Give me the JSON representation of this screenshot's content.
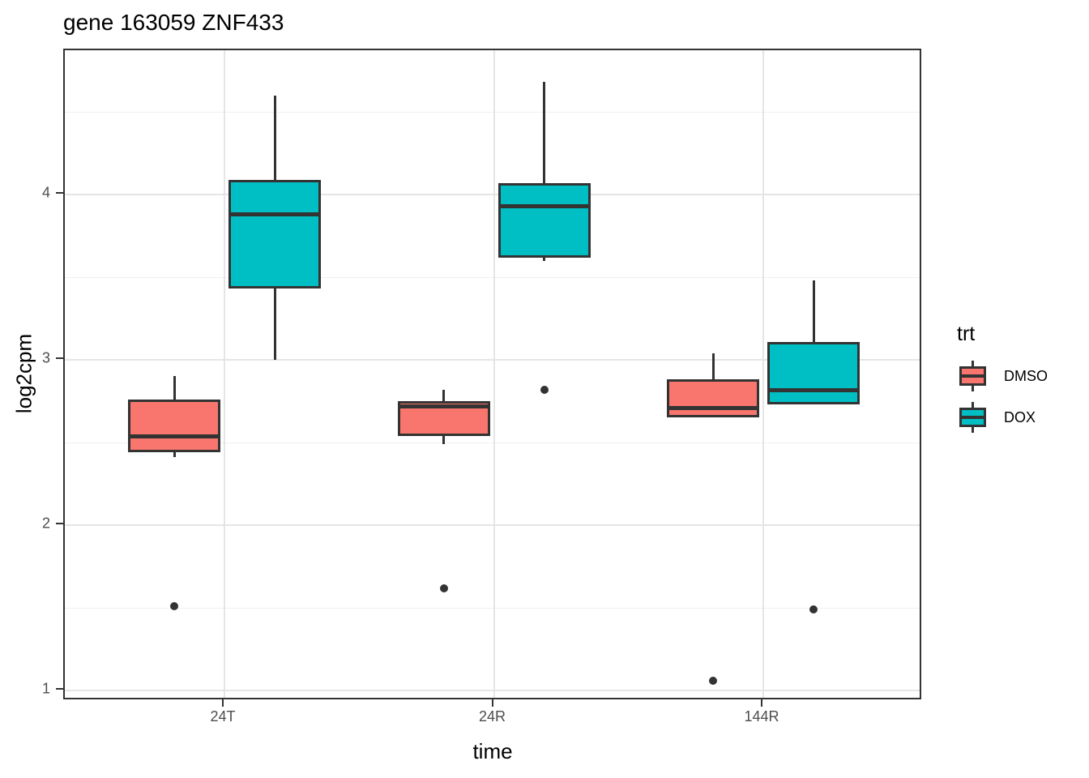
{
  "chart_data": {
    "type": "boxplot",
    "title": "gene 163059 ZNF433",
    "xlabel": "time",
    "ylabel": "log2cpm",
    "categories": [
      "24T",
      "24R",
      "144R"
    ],
    "y_ticks": [
      1,
      2,
      3,
      4
    ],
    "y_minor_gridlines": [
      1.5,
      2.5,
      3.5,
      4.5
    ],
    "ylim": [
      0.94,
      4.87
    ],
    "grid": true,
    "legend": {
      "title": "trt",
      "position": "right",
      "entries": [
        {
          "label": "DMSO",
          "color": "#F8766D"
        },
        {
          "label": "DOX",
          "color": "#00BFC4"
        }
      ]
    },
    "series": [
      {
        "name": "DMSO",
        "color": "#F8766D",
        "boxes": [
          {
            "category": "24T",
            "whisker_low": 2.41,
            "q1": 2.44,
            "median": 2.54,
            "q3": 2.76,
            "whisker_high": 2.9,
            "outliers": [
              1.51
            ]
          },
          {
            "category": "24R",
            "whisker_low": 2.49,
            "q1": 2.54,
            "median": 2.72,
            "q3": 2.75,
            "whisker_high": 2.82,
            "outliers": [
              1.62
            ]
          },
          {
            "category": "144R",
            "whisker_low": 2.65,
            "q1": 2.65,
            "median": 2.71,
            "q3": 2.88,
            "whisker_high": 3.04,
            "outliers": [
              1.06
            ]
          }
        ]
      },
      {
        "name": "DOX",
        "color": "#00BFC4",
        "boxes": [
          {
            "category": "24T",
            "whisker_low": 3.0,
            "q1": 3.43,
            "median": 3.88,
            "q3": 4.09,
            "whisker_high": 4.6,
            "outliers": []
          },
          {
            "category": "24R",
            "whisker_low": 3.6,
            "q1": 3.62,
            "median": 3.93,
            "q3": 4.07,
            "whisker_high": 4.68,
            "outliers": [
              2.82
            ]
          },
          {
            "category": "144R",
            "whisker_low": 2.73,
            "q1": 2.73,
            "median": 2.82,
            "q3": 3.11,
            "whisker_high": 3.48,
            "outliers": [
              1.49
            ]
          }
        ]
      }
    ],
    "style": {
      "box_border_color": "#333333",
      "median_color": "#333333",
      "outlier_color": "#333333",
      "grid_major_color": "#e5e5e5",
      "grid_minor_color": "#f0f0f0",
      "panel_border_color": "#333333",
      "tick_label_color": "#4d4d4d"
    }
  }
}
